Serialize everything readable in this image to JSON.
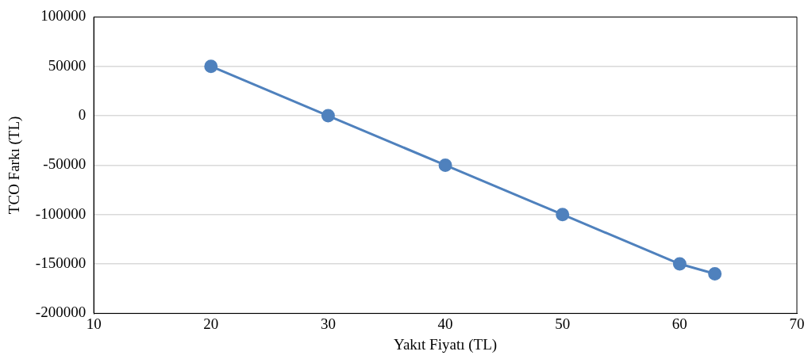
{
  "chart_data": {
    "type": "line",
    "xlabel": "Yakıt Fiyatı (TL)",
    "ylabel": "TCO Farkı (TL)",
    "x": [
      20,
      30,
      40,
      50,
      60,
      63
    ],
    "series": [
      {
        "color": "#4f81bd",
        "values": [
          50000,
          0,
          -50000,
          -100000,
          -150000,
          -160000
        ]
      }
    ],
    "xlim": [
      10,
      70
    ],
    "xticks": [
      10,
      20,
      30,
      40,
      50,
      60,
      70
    ],
    "ylim": [
      -200000,
      100000
    ],
    "yticks": [
      -200000,
      -150000,
      -100000,
      -50000,
      0,
      50000,
      100000
    ],
    "grid": "y",
    "marker": "circle",
    "line_style": "solid",
    "legend": false
  }
}
